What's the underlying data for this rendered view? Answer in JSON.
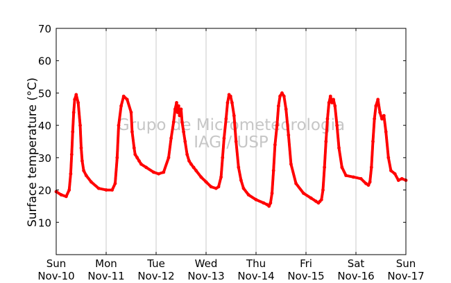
{
  "chart_data": {
    "type": "scatter",
    "title": "",
    "xlabel": "",
    "ylabel": "Surface temperature (°C)",
    "ylim": [
      0,
      70
    ],
    "y_ticks": [
      10,
      20,
      30,
      40,
      50,
      60,
      70
    ],
    "xlim": [
      0,
      7
    ],
    "x_tick_positions": [
      0,
      1,
      2,
      3,
      4,
      5,
      6,
      7
    ],
    "x_tick_labels": [
      {
        "day": "Sun",
        "date": "Nov-10"
      },
      {
        "day": "Mon",
        "date": "Nov-11"
      },
      {
        "day": "Tue",
        "date": "Nov-12"
      },
      {
        "day": "Wed",
        "date": "Nov-13"
      },
      {
        "day": "Thu",
        "date": "Nov-14"
      },
      {
        "day": "Fri",
        "date": "Nov-15"
      },
      {
        "day": "Sat",
        "date": "Nov-16"
      },
      {
        "day": "Sun",
        "date": "Nov-17"
      }
    ],
    "grid": "vertical at day boundaries",
    "marker_color": "#ff0000",
    "watermark_line1": "Grupo de Micrometeorologia",
    "watermark_line2": "IAG / USP",
    "series": [
      {
        "color": "#ff0000",
        "x": [
          0.0,
          0.1,
          0.2,
          0.26,
          0.29,
          0.31,
          0.33,
          0.35,
          0.37,
          0.4,
          0.44,
          0.48,
          0.5,
          0.52,
          0.55,
          0.6,
          0.7,
          0.85,
          1.0,
          1.12,
          1.18,
          1.22,
          1.25,
          1.3,
          1.35,
          1.42,
          1.5,
          1.52,
          1.56,
          1.58,
          1.62,
          1.66,
          1.7,
          1.8,
          1.95,
          2.05,
          2.15,
          2.25,
          2.3,
          2.35,
          2.38,
          2.41,
          2.43,
          2.45,
          2.47,
          2.5,
          2.52,
          2.55,
          2.58,
          2.62,
          2.66,
          2.7,
          2.75,
          2.8,
          2.9,
          3.0,
          3.1,
          3.2,
          3.25,
          3.3,
          3.33,
          3.36,
          3.4,
          3.43,
          3.46,
          3.49,
          3.52,
          3.56,
          3.6,
          3.65,
          3.7,
          3.75,
          3.85,
          4.0,
          4.15,
          4.22,
          4.26,
          4.29,
          4.32,
          4.35,
          4.38,
          4.42,
          4.45,
          4.48,
          4.52,
          4.56,
          4.6,
          4.65,
          4.7,
          4.8,
          4.95,
          5.1,
          5.2,
          5.25,
          5.28,
          5.31,
          5.34,
          5.37,
          5.4,
          5.43,
          5.46,
          5.49,
          5.52,
          5.55,
          5.58,
          5.62,
          5.66,
          5.72,
          5.8,
          5.95,
          6.1,
          6.2,
          6.25,
          6.28,
          6.31,
          6.34,
          6.37,
          6.4,
          6.44,
          6.48,
          6.52,
          6.56,
          6.6,
          6.65,
          6.7,
          6.78,
          6.85,
          6.92,
          7.0
        ],
        "y": [
          19.5,
          18.5,
          18.0,
          20.0,
          25.0,
          31.0,
          38.0,
          44.0,
          48.0,
          49.5,
          47.0,
          40.0,
          33.0,
          29.0,
          26.0,
          24.5,
          22.5,
          20.5,
          20.0,
          20.0,
          22.0,
          30.0,
          40.0,
          46.0,
          49.0,
          48.0,
          44.0,
          38.0,
          33.0,
          31.0,
          30.0,
          29.0,
          28.0,
          27.0,
          25.5,
          25.0,
          25.5,
          30.0,
          36.0,
          41.0,
          45.0,
          47.0,
          44.0,
          46.0,
          43.0,
          45.0,
          41.0,
          38.0,
          35.0,
          31.0,
          29.0,
          28.0,
          27.0,
          26.0,
          24.0,
          22.5,
          21.0,
          20.5,
          21.0,
          24.0,
          30.0,
          36.0,
          42.0,
          47.0,
          49.5,
          49.0,
          47.0,
          43.0,
          35.0,
          27.0,
          23.0,
          20.5,
          18.5,
          17.0,
          16.0,
          15.5,
          15.0,
          16.0,
          19.0,
          26.0,
          34.0,
          40.0,
          46.0,
          49.0,
          50.0,
          49.0,
          45.0,
          37.0,
          28.0,
          22.0,
          19.0,
          17.5,
          16.5,
          16.0,
          16.5,
          17.0,
          20.0,
          27.0,
          35.0,
          42.0,
          47.0,
          49.0,
          47.0,
          48.0,
          46.0,
          40.0,
          33.0,
          27.0,
          24.5,
          24.0,
          23.5,
          22.0,
          21.5,
          22.5,
          27.0,
          35.0,
          42.0,
          46.0,
          48.0,
          44.0,
          42.0,
          43.0,
          38.0,
          30.0,
          26.0,
          25.0,
          23.0,
          23.5,
          23.0
        ]
      }
    ]
  }
}
